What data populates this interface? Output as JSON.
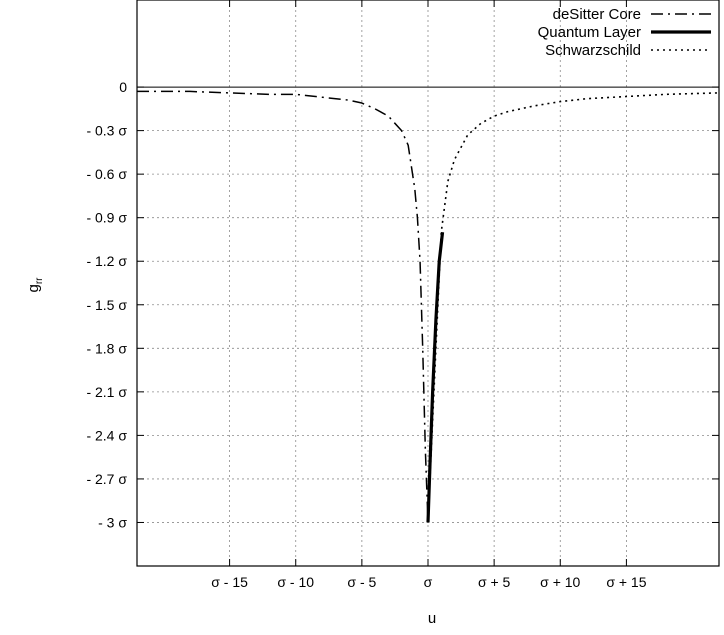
{
  "chart_data": {
    "type": "line",
    "xlabel": "u",
    "ylabel_main": "g",
    "ylabel_sub": "rr",
    "xlim": [
      -22,
      22
    ],
    "ylim": [
      -3.3,
      0.6
    ],
    "grid": true,
    "legend_position": "top-right",
    "x_ticks": [
      {
        "value": -15,
        "label": "σ - 15"
      },
      {
        "value": -10,
        "label": "σ - 10"
      },
      {
        "value": -5,
        "label": "σ - 5"
      },
      {
        "value": 0,
        "label": "σ"
      },
      {
        "value": 5,
        "label": "σ + 5"
      },
      {
        "value": 10,
        "label": "σ + 10"
      },
      {
        "value": 15,
        "label": "σ + 15"
      }
    ],
    "y_ticks": [
      {
        "value": 0,
        "label": "0"
      },
      {
        "value": -0.3,
        "label": "- 0.3 σ"
      },
      {
        "value": -0.6,
        "label": "- 0.6 σ"
      },
      {
        "value": -0.9,
        "label": "- 0.9 σ"
      },
      {
        "value": -1.2,
        "label": "- 1.2 σ"
      },
      {
        "value": -1.5,
        "label": "- 1.5 σ"
      },
      {
        "value": -1.8,
        "label": "- 1.8 σ"
      },
      {
        "value": -2.1,
        "label": "- 2.1 σ"
      },
      {
        "value": -2.4,
        "label": "- 2.4 σ"
      },
      {
        "value": -2.7,
        "label": "- 2.7 σ"
      },
      {
        "value": -3,
        "label": "- 3 σ"
      }
    ],
    "series": [
      {
        "name": "deSitter Core",
        "style": "dash-dot",
        "x": [
          -22,
          -18,
          -15,
          -12,
          -10,
          -8,
          -6,
          -5,
          -4,
          -3,
          -2,
          -1.5,
          -1,
          -0.8,
          -0.6,
          -0.4,
          -0.2,
          0
        ],
        "y": [
          -0.03,
          -0.03,
          -0.04,
          -0.05,
          -0.05,
          -0.07,
          -0.09,
          -0.11,
          -0.15,
          -0.2,
          -0.3,
          -0.4,
          -0.7,
          -0.9,
          -1.2,
          -1.8,
          -2.5,
          -3.0
        ]
      },
      {
        "name": "Quantum Layer",
        "style": "solid-thick",
        "x": [
          0,
          0.15,
          0.35,
          0.6,
          0.85,
          1.1
        ],
        "y": [
          -3.0,
          -2.6,
          -2.1,
          -1.6,
          -1.2,
          -1.0
        ]
      },
      {
        "name": "Schwarzschild",
        "style": "dotted",
        "x": [
          0,
          0.5,
          1,
          1.5,
          2,
          3,
          4,
          5,
          6,
          8,
          10,
          12,
          15,
          18,
          22
        ],
        "y": [
          -3.0,
          -2.0,
          -1.0,
          -0.65,
          -0.5,
          -0.33,
          -0.25,
          -0.2,
          -0.17,
          -0.13,
          -0.1,
          -0.08,
          -0.065,
          -0.05,
          -0.04
        ]
      }
    ]
  }
}
